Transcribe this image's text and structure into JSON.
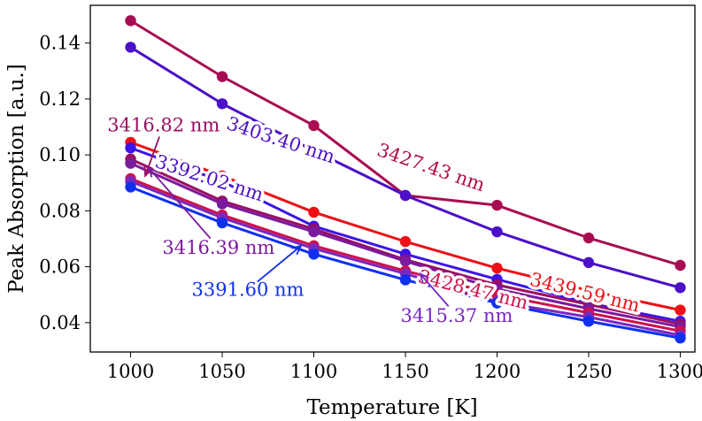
{
  "chart_data": {
    "type": "line",
    "title": "",
    "xlabel": "Temperature [K]",
    "ylabel": "Peak Absorption [a.u.]",
    "xlim": [
      978,
      1308
    ],
    "ylim": [
      0.0295,
      0.1535
    ],
    "xticks": [
      1000,
      1050,
      1100,
      1150,
      1200,
      1250,
      1300
    ],
    "xtick_labels": [
      "1000",
      "1050",
      "1100",
      "1150",
      "1200",
      "1250",
      "1300"
    ],
    "yticks": [
      0.04,
      0.06,
      0.08,
      0.1,
      0.12,
      0.14
    ],
    "ytick_labels": [
      "0.04",
      "0.06",
      "0.08",
      "0.10",
      "0.12",
      "0.14"
    ],
    "grid": false,
    "legend": "none",
    "x": [
      1000,
      1050,
      1100,
      1150,
      1200,
      1250,
      1300
    ],
    "series": [
      {
        "name": "3427.43 nm",
        "color": "#a80c52",
        "values": [
          0.148,
          0.128,
          0.1105,
          0.0855,
          0.082,
          0.0703,
          0.0605
        ]
      },
      {
        "name": "3403.40 nm",
        "color": "#4b10c8",
        "values": [
          0.1385,
          0.1183,
          0.1015,
          0.0855,
          0.0725,
          0.0615,
          0.0525
        ]
      },
      {
        "name": "3439.59 nm",
        "color": "#ee1016",
        "values": [
          0.1045,
          0.0925,
          0.0795,
          0.069,
          0.0595,
          0.0515,
          0.0445
        ]
      },
      {
        "name": "3392.02 nm",
        "color": "#3c14ea",
        "values": [
          0.1025,
          0.0905,
          0.0745,
          0.0645,
          0.0555,
          0.047,
          0.0405
        ]
      },
      {
        "name": "3416.82 nm",
        "color": "#9b0d62",
        "values": [
          0.0985,
          0.0835,
          0.0735,
          0.0625,
          0.0535,
          0.0465,
          0.0395
        ]
      },
      {
        "name": "3416.39 nm",
        "color": "#7a1a9e",
        "values": [
          0.097,
          0.0825,
          0.0725,
          0.062,
          0.052,
          0.045,
          0.0385
        ]
      },
      {
        "name": "3428.47 nm",
        "color": "#d0104a",
        "values": [
          0.0915,
          0.0785,
          0.0675,
          0.0585,
          0.05,
          0.0435,
          0.037
        ]
      },
      {
        "name": "3415.37 nm",
        "color": "#7a28c0",
        "values": [
          0.0905,
          0.0775,
          0.0665,
          0.0575,
          0.0475,
          0.042,
          0.0355
        ]
      },
      {
        "name": "3391.60 nm",
        "color": "#1030f0",
        "values": [
          0.0885,
          0.0757,
          0.0645,
          0.0553,
          0.047,
          0.0405,
          0.0345
        ]
      }
    ],
    "annotations": [
      {
        "text": "3427.43 nm",
        "color": "#b01048",
        "placement": "on line",
        "series": "3427.43 nm",
        "x": 1164,
        "y": 0.0955,
        "angle_deg": 19
      },
      {
        "text": "3403.40 nm",
        "color": "#4b10c8",
        "placement": "on line",
        "series": "3403.40 nm",
        "x": 1082,
        "y": 0.1053,
        "angle_deg": 18
      },
      {
        "text": "3439.59 nm",
        "color": "#ee1016",
        "placement": "on line",
        "series": "3439.59 nm",
        "x": 1248,
        "y": 0.0508,
        "angle_deg": 14
      },
      {
        "text": "3392.02 nm",
        "color": "#4b10c8",
        "placement": "on line",
        "series": "3392.02 nm",
        "x": 1043,
        "y": 0.0917,
        "angle_deg": 18
      },
      {
        "text": "3428.47 nm",
        "color": "#d0104a",
        "placement": "on line",
        "series": "3428.47 nm",
        "x": 1187,
        "y": 0.0518,
        "angle_deg": 14
      },
      {
        "text": "3416.82 nm",
        "color": "#9b0d62",
        "placement": "callout",
        "x": 1018,
        "y": 0.1107,
        "arrow_to": [
          1008,
          0.0925
        ]
      },
      {
        "text": "3416.39 nm",
        "color": "#7a1a9e",
        "placement": "callout",
        "x": 1048,
        "y": 0.0668,
        "arrow_to": [
          1010,
          0.0953
        ]
      },
      {
        "text": "3391.60 nm",
        "color": "#1030f0",
        "placement": "callout",
        "x": 1064,
        "y": 0.0518,
        "arrow_to": [
          1093,
          0.0675
        ]
      },
      {
        "text": "3415.37 nm",
        "color": "#7a28c0",
        "placement": "callout",
        "x": 1178,
        "y": 0.0425,
        "arrow_to": [
          1158,
          0.0575
        ]
      }
    ]
  }
}
